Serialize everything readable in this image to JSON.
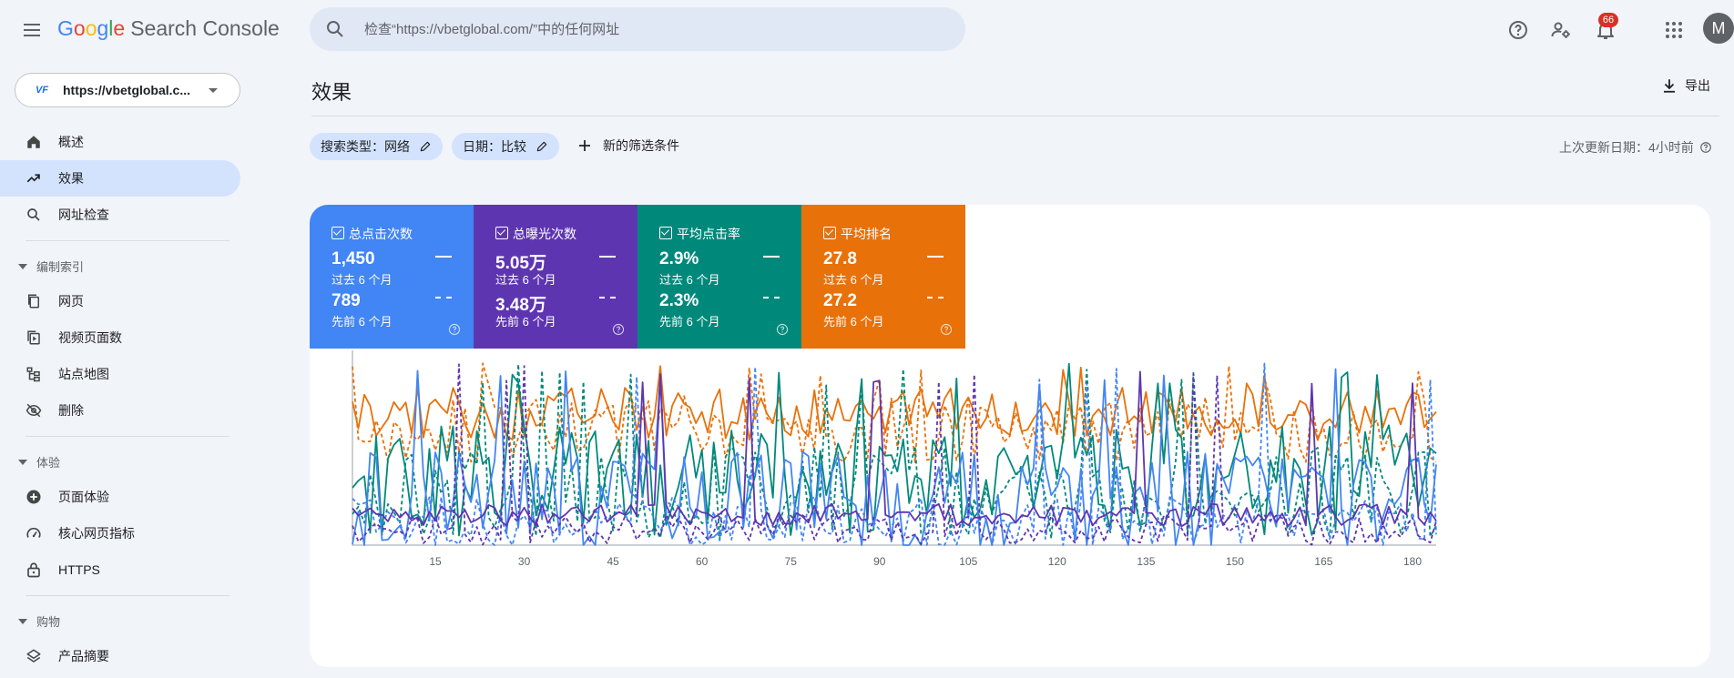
{
  "app": {
    "logo_letters": [
      "G",
      "o",
      "o",
      "g",
      "l",
      "e"
    ],
    "logo_rest": "Search Console",
    "menu_icon": "menu-icon"
  },
  "search": {
    "placeholder": "检查“https://vbetglobal.com/”中的任何网址",
    "icon": "search-icon"
  },
  "top_icons": [
    "help-icon",
    "manage-users-icon",
    "notifications-icon",
    "apps-grid-icon"
  ],
  "notifications": {
    "count": "66"
  },
  "account": {
    "initial": "M"
  },
  "property": {
    "favicon_text": "VF",
    "url": "https://vbetglobal.c..."
  },
  "nav": {
    "items_top": [
      {
        "label": "概述",
        "icon": "home-icon",
        "active": false
      },
      {
        "label": "效果",
        "icon": "trending-up-icon",
        "active": true
      },
      {
        "label": "网址检查",
        "icon": "search-icon",
        "active": false
      }
    ],
    "sections": [
      {
        "title": "编制索引",
        "items": [
          {
            "label": "网页",
            "icon": "pages-icon"
          },
          {
            "label": "视频页面数",
            "icon": "video-pages-icon"
          },
          {
            "label": "站点地图",
            "icon": "sitemap-icon"
          },
          {
            "label": "删除",
            "icon": "removals-icon"
          }
        ]
      },
      {
        "title": "体验",
        "items": [
          {
            "label": "页面体验",
            "icon": "page-experience-icon"
          },
          {
            "label": "核心网页指标",
            "icon": "speed-icon"
          },
          {
            "label": "HTTPS",
            "icon": "lock-icon"
          }
        ]
      },
      {
        "title": "购物",
        "items": [
          {
            "label": "产品摘要",
            "icon": "layers-icon"
          }
        ]
      }
    ]
  },
  "page": {
    "title": "效果",
    "export_label": "导出",
    "filters": [
      {
        "label": "搜索类型：网络"
      },
      {
        "label": "日期：比较"
      }
    ],
    "add_filter_label": "新的筛选条件",
    "last_updated": "上次更新日期：4小时前"
  },
  "metrics": [
    {
      "title": "总点击次数",
      "value_current": "1,450",
      "period_current": "过去 6 个月",
      "value_previous": "789",
      "period_previous": "先前 6 个月",
      "color": "#4285f4"
    },
    {
      "title": "总曝光次数",
      "value_current": "5.05万",
      "period_current": "过去 6 个月",
      "value_previous": "3.48万",
      "period_previous": "先前 6 个月",
      "color": "#5e35b1"
    },
    {
      "title": "平均点击率",
      "value_current": "2.9%",
      "period_current": "过去 6 个月",
      "value_previous": "2.3%",
      "period_previous": "先前 6 个月",
      "color": "#00897b"
    },
    {
      "title": "平均排名",
      "value_current": "27.8",
      "period_current": "过去 6 个月",
      "value_previous": "27.2",
      "period_previous": "先前 6 个月",
      "color": "#e8710a"
    }
  ],
  "chart_data": {
    "type": "line",
    "x_ticks": [
      15,
      30,
      45,
      60,
      75,
      90,
      105,
      120,
      135,
      150,
      165,
      180
    ],
    "x_range": [
      1,
      184
    ],
    "y_range": [
      0,
      100
    ],
    "grid": false,
    "legend": "none",
    "series": [
      {
        "color": "#e8710a",
        "style": "solid",
        "approximate": true
      },
      {
        "color": "#e8710a",
        "style": "dashed",
        "approximate": true
      },
      {
        "color": "#00897b",
        "style": "solid",
        "approximate": true
      },
      {
        "color": "#00897b",
        "style": "dashed",
        "approximate": true
      },
      {
        "color": "#4285f4",
        "style": "solid",
        "approximate": true
      },
      {
        "color": "#4285f4",
        "style": "dashed",
        "approximate": true
      },
      {
        "color": "#5e35b1",
        "style": "solid",
        "approximate": true
      },
      {
        "color": "#5e35b1",
        "style": "dashed",
        "approximate": true
      }
    ]
  }
}
